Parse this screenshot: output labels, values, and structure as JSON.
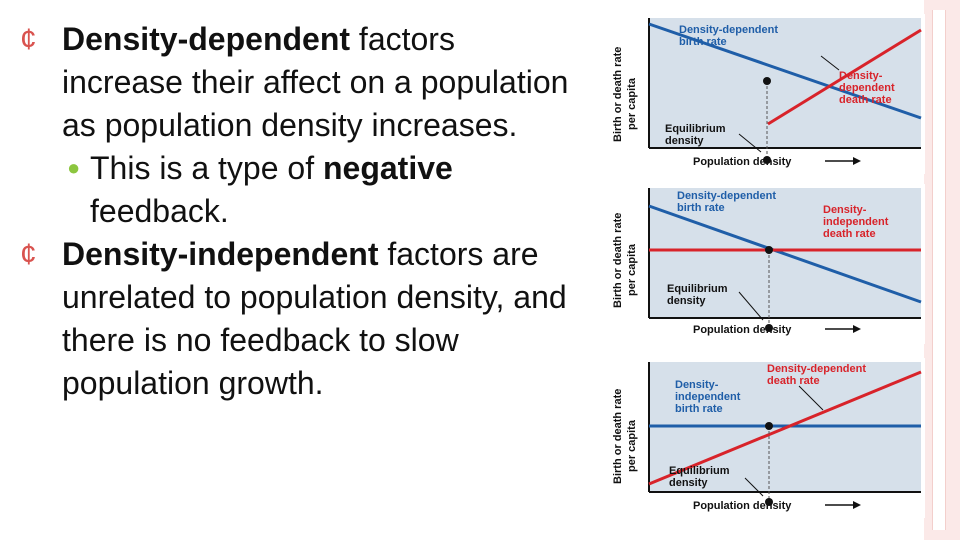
{
  "text": {
    "p1": {
      "lead": "Density-dependent",
      "rest": " factors increase their affect on a population as population density increases."
    },
    "sub1": {
      "pre": "This is a type of ",
      "bold": "negative",
      "post": " feedback."
    },
    "p2": {
      "lead": "Density-independent",
      "rest": " factors are unrelated to population density, and there is no feedback to slow population growth."
    }
  },
  "colors": {
    "accent": "#d9534f",
    "sub_bullet": "#8cc63f",
    "panel": "#d6e0ea",
    "blue_line": "#1f5ea8",
    "red_line": "#d8232a"
  },
  "diagrams": [
    {
      "ylabel_1": "Birth or death rate",
      "ylabel_2": "per capita",
      "xlabel": "Population density",
      "birth_1": "Density-dependent",
      "birth_2": "birth rate",
      "death_1": "Density-",
      "death_2": "dependent",
      "death_3": "death rate",
      "eq_1": "Equilibrium",
      "eq_2": "density"
    },
    {
      "ylabel_1": "Birth or death rate",
      "ylabel_2": "per capita",
      "xlabel": "Population density",
      "birth_1": "Density-dependent",
      "birth_2": "birth rate",
      "death_1": "Density-",
      "death_2": "independent",
      "death_3": "death rate",
      "eq_1": "Equilibrium",
      "eq_2": "density"
    },
    {
      "ylabel_1": "Birth or death rate",
      "ylabel_2": "per capita",
      "xlabel": "Population density",
      "birth_1": "Density-",
      "birth_2": "independent",
      "birth_3": "birth rate",
      "death_1": "Density-dependent",
      "death_2": "death rate",
      "eq_1": "Equilibrium",
      "eq_2": "density"
    }
  ]
}
